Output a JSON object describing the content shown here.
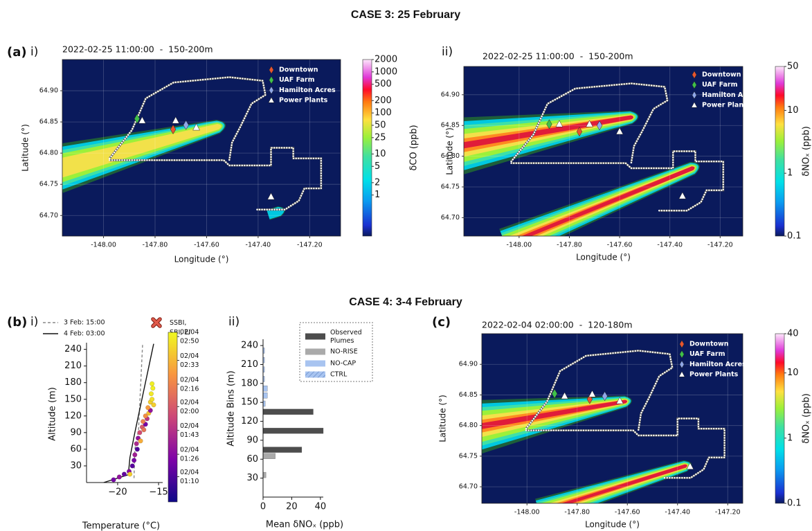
{
  "headings": [
    "CASE 3: 25 February",
    "CASE 4: 3-4 February"
  ],
  "panel_labels": [
    "(a)",
    "i)",
    "ii)",
    "(b)",
    "i)",
    "ii)",
    "(c)"
  ],
  "chart_data": [
    {
      "type": "map",
      "title": "2022-02-25 11:00:00  -  150-200m",
      "xlabel": "Longitude (°)",
      "ylabel": "Latitude (°)",
      "xlim": [
        -148.16,
        -147.08
      ],
      "ylim": [
        64.667,
        64.95
      ],
      "xticks": [
        {
          "value": -148,
          "label": "-148.00"
        },
        {
          "value": -147.8,
          "label": "-147.80"
        },
        {
          "value": -147.6,
          "label": "-147.60"
        },
        {
          "value": -147.4,
          "label": "-147.40"
        },
        {
          "value": -147.2,
          "label": "-147.20"
        }
      ],
      "yticks": [
        {
          "value": 64.7,
          "label": "64.70"
        },
        {
          "value": 64.75,
          "label": "64.75"
        },
        {
          "value": 64.8,
          "label": "64.80"
        },
        {
          "value": 64.85,
          "label": "64.85"
        },
        {
          "value": 64.9,
          "label": "64.90"
        }
      ],
      "grid": true,
      "legend": [
        {
          "name": "Downtown",
          "color": "#e8552f",
          "marker": "diamond"
        },
        {
          "name": "UAF Farm",
          "color": "#3fc14a",
          "marker": "diamond"
        },
        {
          "name": "Hamilton Acres",
          "color": "#8fa7e8",
          "marker": "diamond"
        },
        {
          "name": "Power Plants",
          "color": "#ffffff",
          "marker": "triangle"
        }
      ],
      "markers": {
        "x": [
          -147.73,
          -147.87,
          -147.68,
          -147.85,
          -147.72,
          -147.64,
          -147.35
        ],
        "y": [
          64.838,
          64.855,
          64.845,
          64.852,
          64.852,
          64.841,
          64.73
        ],
        "kind": [
          0,
          1,
          2,
          3,
          3,
          3,
          3
        ]
      },
      "colorbar": {
        "label": "δCO (ppb)",
        "log": true,
        "lim": [
          0.1,
          2000
        ],
        "ticks": [
          2000,
          1000,
          500,
          200,
          100,
          50,
          25,
          10,
          5,
          2,
          1
        ]
      }
    },
    {
      "type": "map",
      "title": "2022-02-25 11:00:00  -  150-200m",
      "xlabel": "Longitude (°)",
      "ylabel": "Latitude (°)",
      "xlim": [
        -148.22,
        -147.11
      ],
      "ylim": [
        64.67,
        64.946
      ],
      "xticks": [
        {
          "value": -148,
          "label": "-148.00"
        },
        {
          "value": -147.8,
          "label": "-147.80"
        },
        {
          "value": -147.6,
          "label": "-147.60"
        },
        {
          "value": -147.4,
          "label": "-147.40"
        },
        {
          "value": -147.2,
          "label": "-147.20"
        }
      ],
      "yticks": [
        {
          "value": 64.7,
          "label": "64.70"
        },
        {
          "value": 64.75,
          "label": "64.75"
        },
        {
          "value": 64.8,
          "label": "64.80"
        },
        {
          "value": 64.85,
          "label": "64.85"
        },
        {
          "value": 64.9,
          "label": "64.90"
        }
      ],
      "grid": true,
      "legend": [
        {
          "name": "Downtown",
          "color": "#e8552f",
          "marker": "diamond"
        },
        {
          "name": "UAF Farm",
          "color": "#3fc14a",
          "marker": "diamond"
        },
        {
          "name": "Hamilton Acres",
          "color": "#8fa7e8",
          "marker": "diamond"
        },
        {
          "name": "Power Plants",
          "color": "#ffffff",
          "marker": "triangle"
        }
      ],
      "markers": {
        "x": [
          -147.76,
          -147.88,
          -147.68,
          -147.84,
          -147.72,
          -147.6,
          -147.35
        ],
        "y": [
          64.84,
          64.852,
          64.85,
          64.852,
          64.852,
          64.84,
          64.735
        ],
        "kind": [
          0,
          1,
          2,
          3,
          3,
          3,
          3
        ]
      },
      "colorbar": {
        "label": "δNOₓ (ppb)",
        "log": true,
        "lim": [
          0.1,
          50
        ],
        "ticks": [
          50,
          10,
          1,
          0.1
        ]
      }
    },
    {
      "type": "line",
      "xlabel": "Temperature (°C)",
      "ylabel": "Altitude (m)",
      "xlim": [
        -23.8,
        -14.5
      ],
      "ylim": [
        0,
        252
      ],
      "xticks": [
        {
          "value": -20,
          "label": "−20"
        },
        {
          "value": -15,
          "label": "−15"
        }
      ],
      "yticks": [
        30,
        60,
        90,
        120,
        150,
        180,
        210,
        240
      ],
      "series": [
        {
          "name": "3 Feb: 15:00",
          "color": "#888888",
          "dash": true,
          "x": [
            -18.0,
            -17.9,
            -17.45,
            -16.95
          ],
          "y": [
            8,
            60,
            95,
            250
          ]
        },
        {
          "name": "4 Feb: 03:00",
          "color": "#111111",
          "dash": false,
          "x": [
            -21.7,
            -18.7,
            -18.5,
            -17.9,
            -15.6
          ],
          "y": [
            0,
            14,
            45,
            90,
            250
          ]
        }
      ],
      "scatter": {
        "x": [
          -20.5,
          -19.8,
          -19.2,
          -18.6,
          -18.2,
          -18.0,
          -17.9,
          -17.6,
          -17.7,
          -17.5,
          -17.3,
          -17.0,
          -16.6,
          -16.9,
          -16.4,
          -16.6,
          -16.2,
          -16.0,
          -16.3,
          -16.0,
          -15.8,
          -15.9,
          -15.7,
          -15.8,
          -18.5,
          -17.2,
          -16.8,
          -15.6
        ],
        "y": [
          5,
          10,
          15,
          20,
          30,
          40,
          50,
          60,
          70,
          80,
          90,
          100,
          105,
          110,
          115,
          120,
          125,
          130,
          135,
          145,
          150,
          160,
          170,
          178,
          15,
          75,
          95,
          140
        ],
        "c": [
          20,
          30,
          15,
          25,
          12,
          20,
          35,
          10,
          40,
          30,
          55,
          60,
          20,
          75,
          45,
          80,
          95,
          30,
          85,
          100,
          105,
          108,
          110,
          110,
          100,
          90,
          70,
          100
        ]
      },
      "marker_legend": {
        "name": "SSBI,\nSBI, EI",
        "color": "#e05a4a"
      },
      "colorbar": {
        "lim": [
          -8,
          113
        ],
        "ticks": [
          {
            "value": 110,
            "label": "02/04\n02:50"
          },
          {
            "value": 93,
            "label": "02/04\n02:33"
          },
          {
            "value": 76,
            "label": "02/04\n02:16"
          },
          {
            "value": 60,
            "label": "02/04\n02:00"
          },
          {
            "value": 43,
            "label": "02/04\n01:43"
          },
          {
            "value": 26,
            "label": "02/04\n01:26"
          },
          {
            "value": 10,
            "label": "02/04\n01:10"
          }
        ]
      }
    },
    {
      "type": "bar",
      "xlabel": "Mean δNOₓ (ppb)",
      "ylabel": "Altitude Bins (m)",
      "xlim": [
        0,
        42
      ],
      "ylim": [
        0,
        250
      ],
      "xticks": [
        0,
        20,
        40
      ],
      "yticks": [
        30,
        60,
        90,
        120,
        150,
        180,
        210,
        240
      ],
      "series": [
        {
          "name": "Observed\nPlumes",
          "color": "#4d4d4d",
          "y": [
            135,
            105,
            75
          ],
          "values": [
            35,
            42,
            27
          ]
        },
        {
          "name": "NO-RISE",
          "color": "#aaaaaa",
          "y": [
            65,
            35
          ],
          "values": [
            8.5,
            2
          ]
        },
        {
          "name": "NO-CAP",
          "color": "#a8c4f0",
          "y": [
            232,
            217,
            202,
            187,
            172,
            161,
            148
          ],
          "values": [
            1,
            1,
            1,
            1,
            3,
            3,
            1.5
          ]
        },
        {
          "name": "CTRL",
          "color": "#a8c4f0",
          "hatch": true,
          "y": [],
          "values": []
        }
      ]
    },
    {
      "type": "map",
      "title": "2022-02-04 02:00:00  -  120-180m",
      "xlabel": "Longitude (°)",
      "ylabel": "Latitude (°)",
      "xlim": [
        -148.18,
        -147.14
      ],
      "ylim": [
        64.673,
        64.95
      ],
      "xticks": [
        {
          "value": -148,
          "label": "-148.00"
        },
        {
          "value": -147.8,
          "label": "-147.80"
        },
        {
          "value": -147.6,
          "label": "-147.60"
        },
        {
          "value": -147.4,
          "label": "-147.40"
        },
        {
          "value": -147.2,
          "label": "-147.20"
        }
      ],
      "yticks": [
        {
          "value": 64.7,
          "label": "64.70"
        },
        {
          "value": 64.75,
          "label": "64.75"
        },
        {
          "value": 64.8,
          "label": "64.80"
        },
        {
          "value": 64.85,
          "label": "64.85"
        },
        {
          "value": 64.9,
          "label": "64.90"
        }
      ],
      "grid": true,
      "legend": [
        {
          "name": "Downtown",
          "color": "#e8552f",
          "marker": "diamond"
        },
        {
          "name": "UAF Farm",
          "color": "#3fc14a",
          "marker": "diamond"
        },
        {
          "name": "Hamilton Acres",
          "color": "#8fa7e8",
          "marker": "diamond"
        },
        {
          "name": "Power Plants",
          "color": "#ffffff",
          "marker": "triangle"
        }
      ],
      "markers": {
        "x": [
          -147.75,
          -147.89,
          -147.69,
          -147.85,
          -147.74,
          -147.63,
          -147.35
        ],
        "y": [
          64.843,
          64.852,
          64.848,
          64.848,
          64.851,
          64.84,
          64.733
        ],
        "kind": [
          0,
          1,
          2,
          3,
          3,
          3,
          3
        ]
      },
      "colorbar": {
        "label": "δNOₓ (ppb)",
        "log": true,
        "lim": [
          0.1,
          40
        ],
        "ticks": [
          40,
          10,
          1,
          0.1
        ]
      }
    }
  ]
}
